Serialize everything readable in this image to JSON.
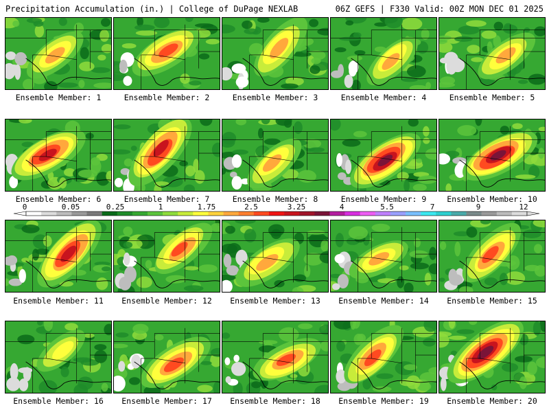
{
  "header": {
    "title_left": "Precipitation Accumulation (in.) | College of DuPage NEXLAB",
    "title_right": "06Z GEFS | F330 Valid: 00Z MON DEC 01 2025"
  },
  "panel_label_prefix": "Ensemble Member: ",
  "panels": [
    {
      "label": "Ensemble Member: 1",
      "intensity": 0.45,
      "max_level": 4
    },
    {
      "label": "Ensemble Member: 2",
      "intensity": 0.6,
      "max_level": 5
    },
    {
      "label": "Ensemble Member: 3",
      "intensity": 0.55,
      "max_level": 4
    },
    {
      "label": "Ensemble Member: 4",
      "intensity": 0.4,
      "max_level": 4
    },
    {
      "label": "Ensemble Member: 5",
      "intensity": 0.45,
      "max_level": 4
    },
    {
      "label": "Ensemble Member: 6",
      "intensity": 0.7,
      "max_level": 6
    },
    {
      "label": "Ensemble Member: 7",
      "intensity": 0.75,
      "max_level": 6
    },
    {
      "label": "Ensemble Member: 8",
      "intensity": 0.45,
      "max_level": 4
    },
    {
      "label": "Ensemble Member: 9",
      "intensity": 0.7,
      "max_level": 7
    },
    {
      "label": "Ensemble Member: 10",
      "intensity": 0.7,
      "max_level": 7
    },
    {
      "label": "Ensemble Member: 11",
      "intensity": 0.75,
      "max_level": 6
    },
    {
      "label": "Ensemble Member: 12",
      "intensity": 0.5,
      "max_level": 5
    },
    {
      "label": "Ensemble Member: 13",
      "intensity": 0.55,
      "max_level": 4
    },
    {
      "label": "Ensemble Member: 14",
      "intensity": 0.4,
      "max_level": 4
    },
    {
      "label": "Ensemble Member: 15",
      "intensity": 0.6,
      "max_level": 5
    },
    {
      "label": "Ensemble Member: 16",
      "intensity": 0.3,
      "max_level": 3
    },
    {
      "label": "Ensemble Member: 17",
      "intensity": 0.65,
      "max_level": 5
    },
    {
      "label": "Ensemble Member: 18",
      "intensity": 0.55,
      "max_level": 5
    },
    {
      "label": "Ensemble Member: 19",
      "intensity": 0.6,
      "max_level": 5
    },
    {
      "label": "Ensemble Member: 20",
      "intensity": 0.85,
      "max_level": 7
    }
  ],
  "colorbar": {
    "tick_labels": [
      "0",
      "0.05",
      "0.25",
      "1",
      "1.75",
      "2.5",
      "3.25",
      "4",
      "5.5",
      "7",
      "9",
      "12"
    ],
    "colors": [
      "#ffffff",
      "#dcdcdc",
      "#bdbdbd",
      "#9a9a9a",
      "#7a7a7a",
      "#0a6b1a",
      "#1f8c2a",
      "#36a832",
      "#5cc43c",
      "#8fdc3c",
      "#c8ec3a",
      "#ffff3c",
      "#ffd23c",
      "#ffa83c",
      "#ff7e2e",
      "#ff4a20",
      "#f01414",
      "#c8141e",
      "#a0142a",
      "#7a1438",
      "#b41ea0",
      "#d82ee0",
      "#ee5ef4",
      "#c080ff",
      "#9aa0ff",
      "#7ac0ff",
      "#3ce8f0",
      "#2ed0d0",
      "#4aaaaa",
      "#7a8a8a",
      "#9a9a9a",
      "#bcbcbc",
      "#dcdcdc"
    ]
  }
}
